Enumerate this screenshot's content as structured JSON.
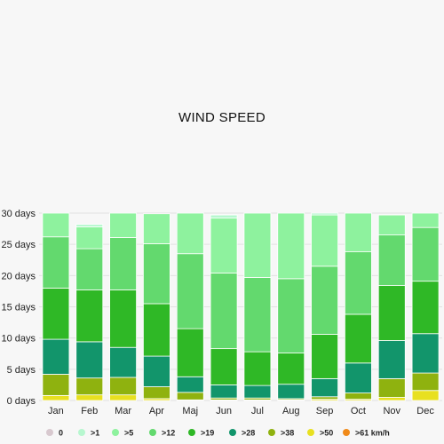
{
  "chart_data": {
    "type": "bar",
    "stacked": true,
    "title": "WIND SPEED",
    "ylim": [
      0,
      30
    ],
    "y_ticks": [
      0,
      5,
      10,
      15,
      20,
      25,
      30
    ],
    "y_tick_suffix": " days",
    "grid": true,
    "legend_position": "bottom",
    "categories": [
      "Jan",
      "Feb",
      "Mar",
      "Apr",
      "Maj",
      "Jun",
      "Jul",
      "Aug",
      "Sep",
      "Oct",
      "Nov",
      "Dec"
    ],
    "series": [
      {
        "name": "0",
        "color": "#d8c9cf",
        "values": [
          0,
          0,
          0,
          0,
          0,
          0,
          0,
          0,
          0,
          0,
          0,
          0
        ]
      },
      {
        "name": ">50",
        "color": "#e8e020",
        "values": [
          0.8,
          0.9,
          0.9,
          0.3,
          0.1,
          0.1,
          0.1,
          0.1,
          0.2,
          0.2,
          0.5,
          1.6
        ]
      },
      {
        "name": ">38",
        "color": "#8fb20f",
        "values": [
          3.4,
          2.7,
          2.8,
          1.9,
          1.2,
          0.3,
          0.3,
          0.2,
          0.4,
          1.0,
          3.0,
          2.8
        ]
      },
      {
        "name": ">28",
        "color": "#12956b",
        "values": [
          5.6,
          5.8,
          4.8,
          4.9,
          2.5,
          2.1,
          2.0,
          2.3,
          2.9,
          4.8,
          6.1,
          6.3
        ]
      },
      {
        "name": ">19",
        "color": "#2fb826",
        "values": [
          8.2,
          8.3,
          9.2,
          8.4,
          7.7,
          5.8,
          5.4,
          5.0,
          7.1,
          7.8,
          8.8,
          8.4
        ]
      },
      {
        "name": ">12",
        "color": "#63d96e",
        "values": [
          8.2,
          6.6,
          8.4,
          9.6,
          12.0,
          12.1,
          11.9,
          11.9,
          10.9,
          10.0,
          8.1,
          8.6
        ]
      },
      {
        "name": ">5",
        "color": "#8ef29e",
        "values": [
          3.8,
          3.5,
          3.9,
          4.8,
          6.5,
          8.8,
          10.3,
          10.5,
          8.2,
          6.2,
          3.2,
          2.3
        ]
      },
      {
        "name": ">1",
        "color": "#b7f7cf",
        "values": [
          0,
          0.4,
          0,
          0,
          0,
          0.5,
          0,
          0,
          0.3,
          0,
          0,
          0
        ]
      },
      {
        "name": ">61 km/h",
        "color": "#f08a1a",
        "values": [
          0,
          0,
          0,
          0,
          0,
          0,
          0,
          0,
          0,
          0,
          0,
          0
        ]
      }
    ],
    "legend_order": [
      "0",
      ">1",
      ">5",
      ">12",
      ">19",
      ">28",
      ">38",
      ">50",
      ">61 km/h"
    ]
  }
}
